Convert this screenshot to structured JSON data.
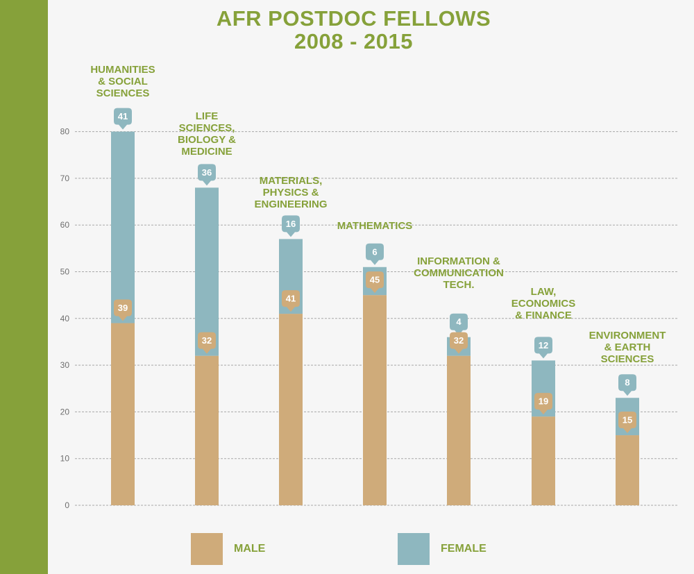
{
  "colors": {
    "accent_green": "#86a13a",
    "male": "#cfab7a",
    "female": "#8eb7bf",
    "background": "#f6f6f6",
    "grid": "#a8a8a8",
    "axis_text": "#6e6e6e"
  },
  "title_lines": [
    "AFR POSTDOC FELLOWS",
    "2008 - 2015"
  ],
  "legend": [
    {
      "label": "MALE",
      "color": "#cfab7a"
    },
    {
      "label": "FEMALE",
      "color": "#8eb7bf"
    }
  ],
  "chart_data": {
    "type": "bar",
    "stacked": true,
    "title": "AFR POSTDOC FELLOWS 2008 - 2015",
    "categories": [
      "HUMANITIES & SOCIAL SCIENCES",
      "LIFE SCIENCES, BIOLOGY & MEDICINE",
      "MATERIALS, PHYSICS & ENGINEERING",
      "MATHEMATICS",
      "INFORMATION & COMMUNICATION TECH.",
      "LAW, ECONOMICS & FINANCE",
      "ENVIRONMENT & EARTH SCIENCES"
    ],
    "category_label_lines": [
      [
        "HUMANITIES",
        "& SOCIAL",
        "SCIENCES"
      ],
      [
        "LIFE",
        "SCIENCES,",
        "BIOLOGY &",
        "MEDICINE"
      ],
      [
        "MATERIALS,",
        "PHYSICS &",
        "ENGINEERING"
      ],
      [
        "MATHEMATICS"
      ],
      [
        "INFORMATION &",
        "COMMUNICATION",
        "TECH."
      ],
      [
        "LAW,",
        "ECONOMICS",
        "& FINANCE"
      ],
      [
        "ENVIRONMENT",
        "& EARTH",
        "SCIENCES"
      ]
    ],
    "series": [
      {
        "name": "MALE",
        "values": [
          39,
          32,
          41,
          45,
          32,
          19,
          15
        ],
        "color": "#cfab7a"
      },
      {
        "name": "FEMALE",
        "values": [
          41,
          36,
          16,
          6,
          4,
          12,
          8
        ],
        "color": "#8eb7bf"
      }
    ],
    "yticks": [
      0,
      10,
      20,
      30,
      40,
      50,
      60,
      70,
      80
    ],
    "ylim": [
      0,
      80
    ],
    "grid": true,
    "legend_position": "bottom"
  }
}
